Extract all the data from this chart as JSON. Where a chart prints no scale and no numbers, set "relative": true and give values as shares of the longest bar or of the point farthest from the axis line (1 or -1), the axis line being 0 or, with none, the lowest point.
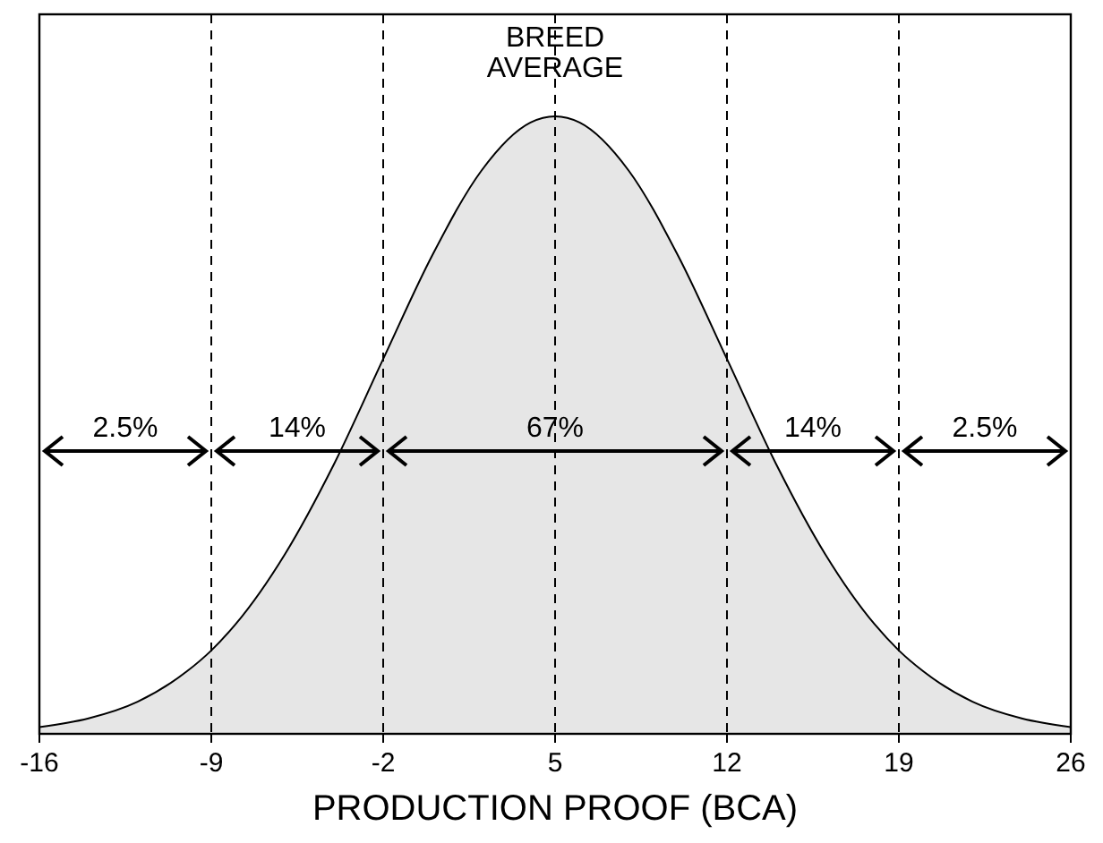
{
  "chart_data": {
    "type": "area",
    "relative": true,
    "xlabel": "PRODUCTION PROOF (BCA)",
    "x": [
      -16,
      -14,
      -12,
      -10,
      -9,
      -8,
      -6,
      -4,
      -2,
      0,
      2,
      4,
      5,
      6,
      8,
      10,
      12,
      14,
      16,
      18,
      19,
      20,
      22,
      24,
      26
    ],
    "series": [
      {
        "color": "#e6e6e6",
        "values": [
          0.011,
          0.025,
          0.052,
          0.101,
          0.135,
          0.178,
          0.291,
          0.437,
          0.607,
          0.775,
          0.912,
          0.99,
          1,
          0.99,
          0.912,
          0.775,
          0.607,
          0.437,
          0.291,
          0.178,
          0.135,
          0.101,
          0.052,
          0.025,
          0.011
        ]
      }
    ],
    "xlim": [
      -16,
      26
    ],
    "xticks": [
      -16,
      -9,
      -2,
      5,
      12,
      19,
      26
    ],
    "ref_lines": [
      {
        "axis": "x",
        "value": -9,
        "line_style": "dashed"
      },
      {
        "axis": "x",
        "value": -2,
        "line_style": "dashed"
      },
      {
        "axis": "x",
        "value": 5,
        "line_style": "dashed",
        "label": "BREED AVERAGE"
      },
      {
        "axis": "x",
        "value": 12,
        "line_style": "dashed"
      },
      {
        "axis": "x",
        "value": 19,
        "line_style": "dashed"
      }
    ],
    "annotations": [
      "2.5%",
      "14%",
      "67%",
      "14%",
      "2.5%"
    ]
  }
}
